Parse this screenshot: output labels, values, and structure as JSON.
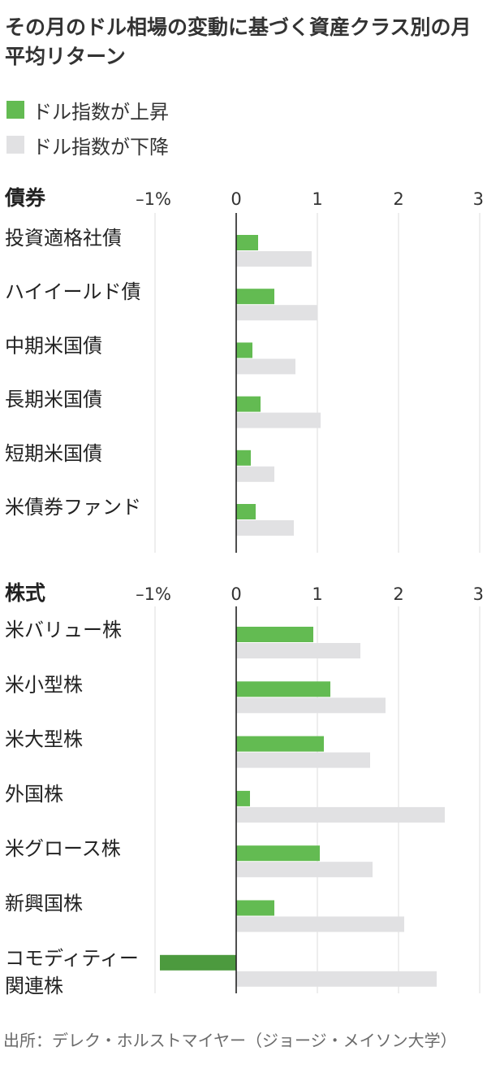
{
  "title": "その月のドル相場の変動に基づく資産クラス別の月平均リターン",
  "legend": [
    {
      "label": "ドル指数が上昇",
      "color": "#63bb52"
    },
    {
      "label": "ドル指数が下降",
      "color": "#e1e1e3"
    }
  ],
  "colors": {
    "rise": "#63bb52",
    "rise_negative": "#4c9a3e",
    "fall": "#e1e1e3",
    "grid": "#dddddd",
    "zero_line": "#222222",
    "text": "#222222"
  },
  "chart_data": [
    {
      "type": "bar",
      "orientation": "horizontal",
      "title": "債券",
      "x_ticks": [
        "–1%",
        "0",
        "1",
        "2",
        "3"
      ],
      "xlim": [
        -1,
        3
      ],
      "categories": [
        "投資適格社債",
        "ハイイールド債",
        "中期米国債",
        "長期米国債",
        "短期米国債",
        "米債券ファンド"
      ],
      "series": [
        {
          "name": "ドル指数が上昇",
          "values": [
            0.27,
            0.47,
            0.2,
            0.3,
            0.18,
            0.24
          ]
        },
        {
          "name": "ドル指数が下降",
          "values": [
            0.93,
            1.0,
            0.73,
            1.04,
            0.47,
            0.71
          ]
        }
      ]
    },
    {
      "type": "bar",
      "orientation": "horizontal",
      "title": "株式",
      "x_ticks": [
        "–1%",
        "0",
        "1",
        "2",
        "3"
      ],
      "xlim": [
        -1,
        3
      ],
      "categories": [
        "米バリュー株",
        "米小型株",
        "米大型株",
        "外国株",
        "米グロース株",
        "新興国株",
        "コモディティー関連株"
      ],
      "series": [
        {
          "name": "ドル指数が上昇",
          "values": [
            0.95,
            1.16,
            1.08,
            0.17,
            1.03,
            0.47,
            -0.94
          ]
        },
        {
          "name": "ドル指数が下降",
          "values": [
            1.53,
            1.84,
            1.65,
            2.57,
            1.68,
            2.07,
            2.47
          ]
        }
      ]
    }
  ],
  "source": "出所：デレク・ホルストマイヤー（ジョージ・メイソン大学）"
}
